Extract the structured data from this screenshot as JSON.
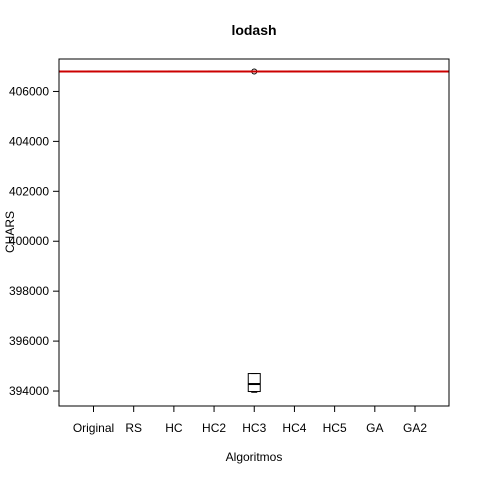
{
  "chart_data": {
    "type": "boxplot",
    "title": "lodash",
    "xlabel": "Algoritmos",
    "ylabel": "CHARS",
    "categories": [
      "Original",
      "RS",
      "HC",
      "HC2",
      "HC3",
      "HC4",
      "HC5",
      "GA",
      "GA2"
    ],
    "ylim": [
      393400,
      407300
    ],
    "yticks": [
      394000,
      396000,
      398000,
      400000,
      402000,
      404000,
      406000
    ],
    "ytick_labels": [
      "394000",
      "396000",
      "398000",
      "400000",
      "402000",
      "404000",
      "406000"
    ],
    "boxes": [
      {
        "category": "Original",
        "min": 406800,
        "q1": 406800,
        "median": 406800,
        "q3": 406800,
        "max": 406800,
        "outliers": []
      },
      {
        "category": "RS",
        "min": 406800,
        "q1": 406800,
        "median": 406800,
        "q3": 406800,
        "max": 406800,
        "outliers": []
      },
      {
        "category": "HC",
        "min": 406800,
        "q1": 406800,
        "median": 406800,
        "q3": 406800,
        "max": 406800,
        "outliers": []
      },
      {
        "category": "HC2",
        "min": 406800,
        "q1": 406800,
        "median": 406800,
        "q3": 406800,
        "max": 406800,
        "outliers": []
      },
      {
        "category": "HC3",
        "min": 393950,
        "q1": 393980,
        "median": 394280,
        "q3": 394700,
        "max": 394700,
        "outliers": [
          406800
        ]
      },
      {
        "category": "HC4",
        "min": 406800,
        "q1": 406800,
        "median": 406800,
        "q3": 406800,
        "max": 406800,
        "outliers": []
      },
      {
        "category": "HC5",
        "min": 406800,
        "q1": 406800,
        "median": 406800,
        "q3": 406800,
        "max": 406800,
        "outliers": []
      },
      {
        "category": "GA",
        "min": 406800,
        "q1": 406800,
        "median": 406800,
        "q3": 406800,
        "max": 406800,
        "outliers": []
      },
      {
        "category": "GA2",
        "min": 406800,
        "q1": 406800,
        "median": 406800,
        "q3": 406800,
        "max": 406800,
        "outliers": []
      }
    ],
    "reference_line": {
      "value": 406800,
      "color": "#cc0000"
    },
    "grid": false,
    "legend": "none"
  }
}
